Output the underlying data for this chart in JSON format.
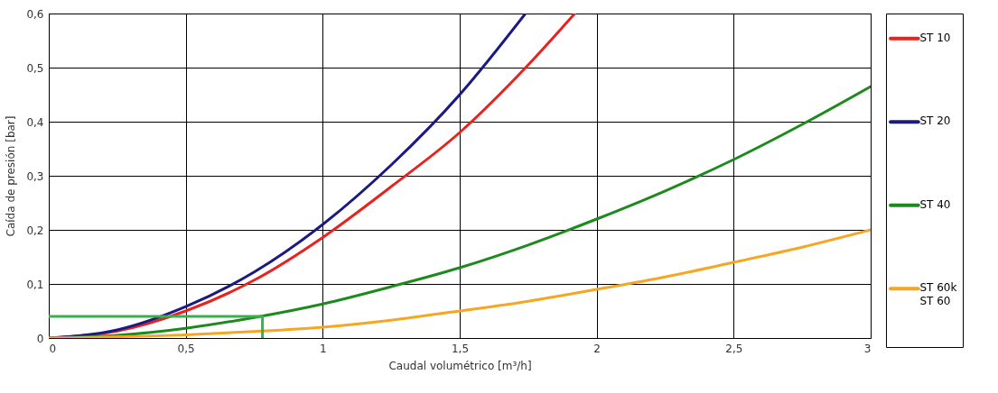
{
  "chart_data": {
    "type": "line",
    "xlabel": "Caudal volumétrico [m³/h]",
    "ylabel": "Caída de presión [bar]",
    "xlim": [
      0,
      3
    ],
    "ylim": [
      0,
      0.6
    ],
    "xticks": [
      0,
      {
        "value": 0.5,
        "label": "0,5"
      },
      1,
      {
        "value": 1.5,
        "label": "1,5"
      },
      2,
      {
        "value": 2.5,
        "label": "2,5"
      },
      3
    ],
    "yticks": [
      0,
      {
        "value": 0.1,
        "label": "0,1"
      },
      {
        "value": 0.2,
        "label": "0,2"
      },
      {
        "value": 0.3,
        "label": "0,3"
      },
      {
        "value": 0.4,
        "label": "0,4"
      },
      {
        "value": 0.5,
        "label": "0,5"
      },
      {
        "value": 0.6,
        "label": "0,6"
      }
    ],
    "grid": true,
    "legend": "right",
    "series": [
      {
        "name": "ST 10",
        "color": "#e8231f",
        "x": [
          0,
          0.25,
          0.5,
          0.75,
          1,
          1.25,
          1.5,
          1.75,
          1.92
        ],
        "values": [
          0,
          0.013,
          0.05,
          0.107,
          0.186,
          0.28,
          0.38,
          0.505,
          0.6
        ]
      },
      {
        "name": "ST 20",
        "color": "#1a1a80",
        "x": [
          0,
          0.25,
          0.5,
          0.75,
          1,
          1.25,
          1.5,
          1.74
        ],
        "values": [
          0,
          0.015,
          0.058,
          0.122,
          0.21,
          0.32,
          0.45,
          0.6
        ]
      },
      {
        "name": "ST 40",
        "color": "#1e8a1e",
        "x": [
          0,
          0.25,
          0.5,
          0.75,
          1,
          1.25,
          1.5,
          1.75,
          2,
          2.25,
          2.5,
          2.75,
          3
        ],
        "values": [
          0,
          0.005,
          0.018,
          0.038,
          0.063,
          0.095,
          0.13,
          0.172,
          0.22,
          0.272,
          0.33,
          0.395,
          0.465
        ]
      },
      {
        "name": "ST 60k\nST 60",
        "color": "#f5a623",
        "x": [
          0,
          0.5,
          0.75,
          1,
          1.25,
          1.5,
          1.75,
          2,
          2.25,
          2.5,
          2.75,
          3
        ],
        "values": [
          0,
          0.006,
          0.012,
          0.02,
          0.033,
          0.05,
          0.068,
          0.09,
          0.113,
          0.14,
          0.168,
          0.2
        ]
      },
      {
        "color": "#3dad4f",
        "x": [
          0,
          0.78,
          0.78
        ],
        "values": [
          0.04,
          0.04,
          0
        ]
      }
    ]
  }
}
